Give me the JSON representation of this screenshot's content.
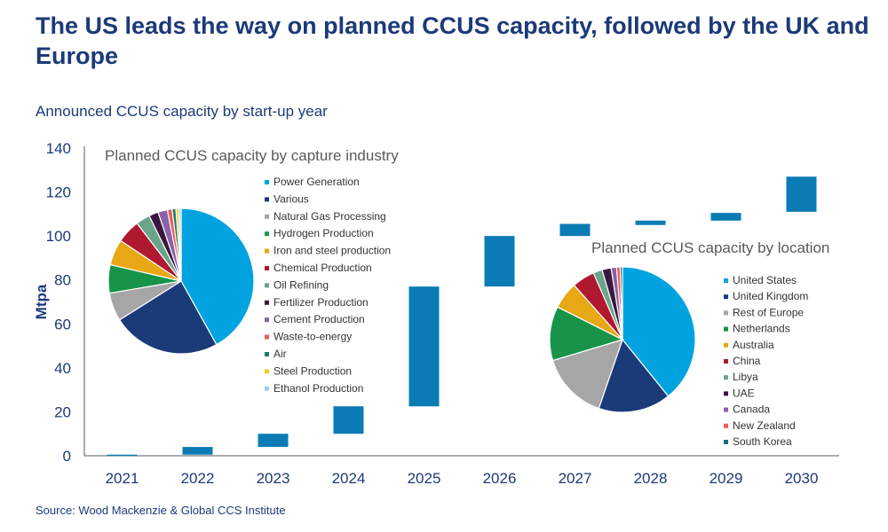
{
  "title": "The US leads the way on planned CCUS capacity, followed by the UK and Europe",
  "subtitle": "Announced CCUS capacity by start-up year",
  "source": "Source: Wood Mackenzie & Global CCS Institute",
  "colors": {
    "text": "#1b3a78",
    "bar": "#0b7bb5",
    "axis": "#595959"
  },
  "chart_data": [
    {
      "type": "bar",
      "subtype": "waterfall",
      "categories": [
        "2021",
        "2022",
        "2023",
        "2024",
        "2025",
        "2026",
        "2027",
        "2028",
        "2029",
        "2030"
      ],
      "start": [
        0,
        0.5,
        4,
        10,
        22.5,
        77,
        100,
        105,
        107,
        111
      ],
      "end": [
        0.5,
        4,
        10,
        22.5,
        77,
        100,
        105.5,
        107,
        110.5,
        127
      ],
      "ylabel": "Mtpa",
      "ylim": [
        0,
        140
      ],
      "yticks": [
        0,
        20,
        40,
        60,
        80,
        100,
        120,
        140
      ],
      "grid": false
    },
    {
      "type": "pie",
      "title": "Planned CCUS capacity by capture industry",
      "legend_position": "right",
      "labels": [
        "Power Generation",
        "Various",
        "Natural Gas Processing",
        "Hydrogen Production",
        "Iron and steel production",
        "Chemical Production",
        "Oil Refining",
        "Fertilizer Production",
        "Cement Production",
        "Waste-to-energy",
        "Air",
        "Steel Production",
        "Ethanol Production"
      ],
      "values": [
        40,
        23,
        6,
        6,
        5.5,
        5,
        3,
        2,
        2,
        1,
        0.8,
        0.6,
        0.5
      ],
      "colors": [
        "#00a3e0",
        "#1b3a78",
        "#a6a6a6",
        "#17944a",
        "#e8a714",
        "#b0182f",
        "#6aa58a",
        "#3b1740",
        "#8a62a8",
        "#f05a5a",
        "#1f7a6e",
        "#f2d022",
        "#a4cdea"
      ]
    },
    {
      "type": "pie",
      "title": "Planned CCUS capacity by location",
      "legend_position": "right",
      "labels": [
        "United States",
        "United Kingdom",
        "Rest of Europe",
        "Netherlands",
        "Australia",
        "China",
        "Libya",
        "UAE",
        "Canada",
        "New Zealand",
        "South Korea"
      ],
      "values": [
        39,
        16,
        15,
        12,
        6,
        5,
        2,
        2,
        1.2,
        0.8,
        0.5
      ],
      "colors": [
        "#00a3e0",
        "#1b3a78",
        "#a6a6a6",
        "#17944a",
        "#e8a714",
        "#b0182f",
        "#6aa58a",
        "#3b1740",
        "#8a62a8",
        "#f05a5a",
        "#1f6b78"
      ]
    }
  ]
}
